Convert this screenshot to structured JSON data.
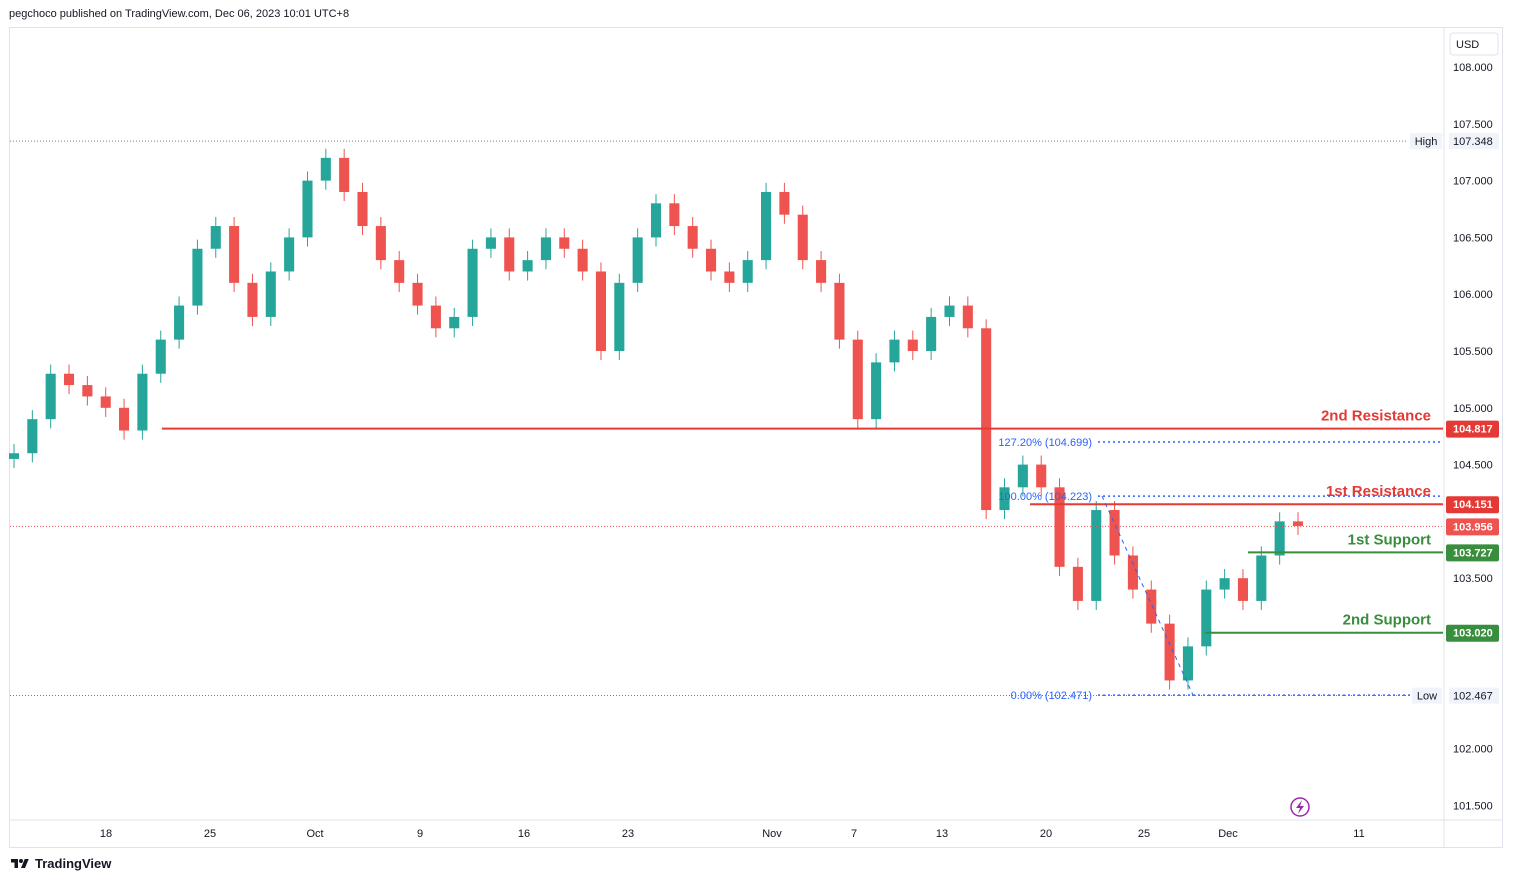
{
  "header": {
    "published": "pegchoco published on TradingView.com, Dec 06, 2023 10:01 UTC+8"
  },
  "footer": {
    "brand": "TradingView"
  },
  "colors": {
    "up": "#26a69a",
    "down": "#ef5350",
    "resistance": "#e53935",
    "support": "#388e3c",
    "fib": "#2962ff",
    "grid_text": "#131722"
  },
  "chart_data": {
    "type": "candlestick",
    "symbol_currency": "USD",
    "price_axis_ticks": [
      "108.000",
      "107.500",
      "107.000",
      "106.500",
      "106.000",
      "105.500",
      "105.000",
      "104.500",
      "103.500",
      "102.000",
      "101.500"
    ],
    "time_axis_ticks": [
      "18",
      "25",
      "Oct",
      "9",
      "16",
      "23",
      "Nov",
      "7",
      "13",
      "20",
      "25",
      "Dec",
      "11"
    ],
    "ylim": [
      101.3,
      108.5
    ],
    "high": {
      "label": "High",
      "value": "107.348"
    },
    "low": {
      "label": "Low",
      "value": "102.467"
    },
    "last_price": "103.956",
    "levels": [
      {
        "name": "2nd Resistance",
        "value": "104.817",
        "kind": "resistance"
      },
      {
        "name": "1st Resistance",
        "value": "104.151",
        "kind": "resistance"
      },
      {
        "name": "1st Support",
        "value": "103.727",
        "kind": "support"
      },
      {
        "name": "2nd Support",
        "value": "103.020",
        "kind": "support"
      }
    ],
    "fibonacci": [
      {
        "label": "127.20% (104.699)",
        "value": 104.699
      },
      {
        "label": "100.00% (104.223)",
        "value": 104.223
      },
      {
        "label": "0.00% (102.471)",
        "value": 102.471
      }
    ],
    "close_series_approx": [
      104.6,
      104.9,
      105.3,
      105.2,
      105.1,
      105.0,
      104.8,
      105.3,
      105.6,
      105.9,
      106.4,
      106.6,
      106.1,
      105.8,
      106.2,
      106.5,
      107.0,
      107.2,
      106.9,
      106.6,
      106.3,
      106.1,
      105.9,
      105.7,
      105.8,
      106.4,
      106.5,
      106.2,
      106.3,
      106.5,
      106.4,
      106.2,
      105.5,
      106.1,
      106.5,
      106.8,
      106.6,
      106.4,
      106.2,
      106.1,
      106.3,
      106.9,
      106.7,
      106.3,
      106.1,
      105.6,
      104.9,
      105.4,
      105.6,
      105.5,
      105.8,
      105.9,
      105.7,
      104.1,
      104.3,
      104.5,
      104.3,
      103.6,
      103.3,
      104.1,
      103.7,
      103.4,
      103.1,
      102.6,
      102.9,
      103.4,
      103.5,
      103.3,
      103.7,
      104.0,
      103.96
    ]
  }
}
